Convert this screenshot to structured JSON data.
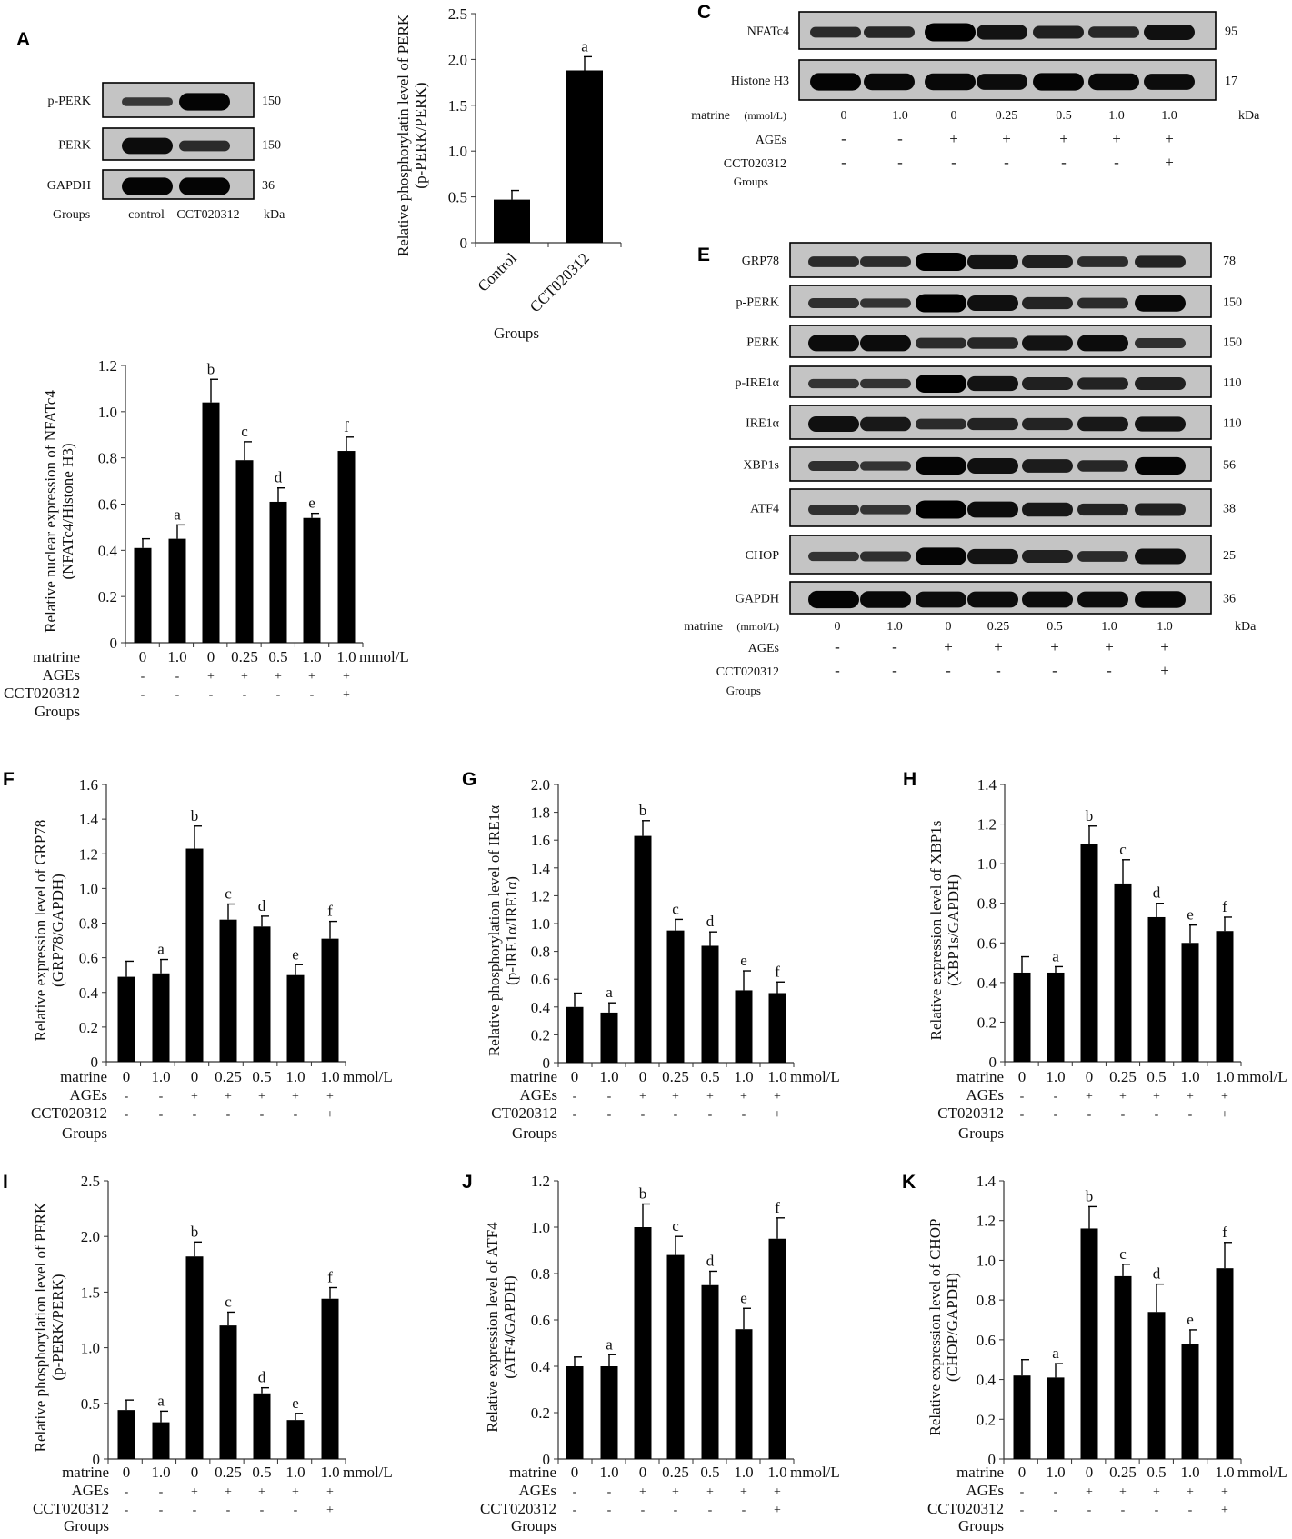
{
  "panels": {
    "A": {
      "letter": "A",
      "rows": [
        {
          "label": "p-PERK",
          "kda": "150",
          "bands": [
            0.3,
            0.95
          ]
        },
        {
          "label": "PERK",
          "kda": "150",
          "bands": [
            0.85,
            0.45
          ]
        },
        {
          "label": "GAPDH",
          "kda": "36",
          "bands": [
            0.95,
            0.95
          ]
        }
      ],
      "groups_label": "Groups",
      "lanes": [
        "control",
        "CCT020312"
      ],
      "kda_label": "kDa"
    },
    "C": {
      "letter": "C",
      "rows": [
        {
          "label": "NFATc4",
          "kda": "95",
          "bands": [
            0.45,
            0.5,
            1.0,
            0.75,
            0.6,
            0.5,
            0.8
          ]
        },
        {
          "label": "Histone H3",
          "kda": "17",
          "bands": [
            0.95,
            0.9,
            0.9,
            0.85,
            0.95,
            0.9,
            0.85
          ]
        }
      ],
      "conditions": {
        "matrine_label": "matrine",
        "matrine_unit": "(mmol/L)",
        "matrine": [
          "0",
          "1.0",
          "0",
          "0.25",
          "0.5",
          "1.0",
          "1.0"
        ],
        "ages_label": "AGEs",
        "ages": [
          "-",
          "-",
          "+",
          "+",
          "+",
          "+",
          "+"
        ],
        "cct_label": "CCT020312",
        "cct": [
          "-",
          "-",
          "-",
          "-",
          "-",
          "-",
          "+"
        ],
        "groups_label": "Groups"
      },
      "kda_label": "kDa"
    },
    "E": {
      "letter": "E",
      "rows": [
        {
          "label": "GRP78",
          "kda": "78",
          "bands": [
            0.45,
            0.45,
            1.0,
            0.75,
            0.6,
            0.45,
            0.55
          ]
        },
        {
          "label": "p-PERK",
          "kda": "150",
          "bands": [
            0.4,
            0.35,
            1.0,
            0.8,
            0.55,
            0.45,
            0.9
          ]
        },
        {
          "label": "PERK",
          "kda": "150",
          "bands": [
            0.85,
            0.85,
            0.45,
            0.5,
            0.75,
            0.85,
            0.4
          ]
        },
        {
          "label": "p-IRE1α",
          "kda": "110",
          "bands": [
            0.35,
            0.35,
            1.0,
            0.75,
            0.6,
            0.55,
            0.6
          ]
        },
        {
          "label": "IRE1α",
          "kda": "110",
          "bands": [
            0.8,
            0.7,
            0.45,
            0.55,
            0.55,
            0.7,
            0.75
          ]
        },
        {
          "label": "XBP1s",
          "kda": "56",
          "bands": [
            0.4,
            0.35,
            0.95,
            0.8,
            0.65,
            0.5,
            0.95
          ]
        },
        {
          "label": "ATF4",
          "kda": "38",
          "bands": [
            0.4,
            0.35,
            1.0,
            0.85,
            0.7,
            0.55,
            0.6
          ]
        },
        {
          "label": "CHOP",
          "kda": "25",
          "bands": [
            0.35,
            0.4,
            0.95,
            0.75,
            0.6,
            0.45,
            0.8
          ]
        },
        {
          "label": "GAPDH",
          "kda": "36",
          "bands": [
            0.95,
            0.9,
            0.85,
            0.85,
            0.85,
            0.85,
            0.9
          ]
        }
      ],
      "conditions": {
        "matrine_label": "matrine",
        "matrine_unit": "(mmol/L)",
        "matrine": [
          "0",
          "1.0",
          "0",
          "0.25",
          "0.5",
          "1.0",
          "1.0"
        ],
        "ages_label": "AGEs",
        "ages": [
          "-",
          "-",
          "+",
          "+",
          "+",
          "+",
          "+"
        ],
        "cct_label": "CCT020312",
        "cct": [
          "-",
          "-",
          "-",
          "-",
          "-",
          "-",
          "+"
        ],
        "groups_label": "Groups"
      },
      "kda_label": "kDa"
    }
  },
  "chart_data": [
    {
      "panel": "B",
      "type": "bar",
      "ylabel": [
        "Relative phosphorylatin level of PERK",
        "(p-PERK/PERK)"
      ],
      "ylim": [
        0,
        2.5
      ],
      "yticks": [
        "0",
        "0.5",
        "1.0",
        "1.5",
        "2.0",
        "2.5"
      ],
      "categories": [
        "Control",
        "CCT020312"
      ],
      "values": [
        0.47,
        1.88
      ],
      "errors": [
        0.1,
        0.15
      ],
      "sig": [
        "",
        "a"
      ],
      "xlabel": "Groups"
    },
    {
      "panel": "D",
      "type": "bar",
      "ylabel": [
        "Relative nuclear expression of NFATc4",
        "(NFATc4/Histone H3)"
      ],
      "ylim": [
        0,
        1.2
      ],
      "yticks": [
        "0",
        "0.2",
        "0.4",
        "0.6",
        "0.8",
        "1.0",
        "1.2"
      ],
      "values": [
        0.41,
        0.45,
        1.04,
        0.79,
        0.61,
        0.54,
        0.83
      ],
      "errors": [
        0.04,
        0.06,
        0.1,
        0.08,
        0.06,
        0.02,
        0.06
      ],
      "sig": [
        "",
        "a",
        "b",
        "c",
        "d",
        "e",
        "f"
      ],
      "rows": {
        "matrine_label": "matrine",
        "matrine": [
          "0",
          "1.0",
          "0",
          "0.25",
          "0.5",
          "1.0",
          "1.0"
        ],
        "unit": "mmol/L",
        "ages_label": "AGEs",
        "ages": [
          "-",
          "-",
          "+",
          "+",
          "+",
          "+",
          "+"
        ],
        "cct_label": "CCT020312",
        "cct": [
          "-",
          "-",
          "-",
          "-",
          "-",
          "-",
          "+"
        ],
        "groups_label": "Groups"
      }
    },
    {
      "panel": "F",
      "type": "bar",
      "ylabel": [
        "Relative expression level of GRP78",
        "(GRP78/GAPDH)"
      ],
      "ylim": [
        0,
        1.6
      ],
      "yticks": [
        "0",
        "0.2",
        "0.4",
        "0.6",
        "0.8",
        "1.0",
        "1.2",
        "1.4",
        "1.6"
      ],
      "values": [
        0.49,
        0.51,
        1.23,
        0.82,
        0.78,
        0.5,
        0.71
      ],
      "errors": [
        0.09,
        0.08,
        0.13,
        0.09,
        0.06,
        0.06,
        0.1
      ],
      "sig": [
        "",
        "a",
        "b",
        "c",
        "d",
        "e",
        "f"
      ],
      "rows": {
        "matrine_label": "matrine",
        "matrine": [
          "0",
          "1.0",
          "0",
          "0.25",
          "0.5",
          "1.0",
          "1.0"
        ],
        "unit": "mmol/L",
        "ages_label": "AGEs",
        "ages": [
          "-",
          "-",
          "+",
          "+",
          "+",
          "+",
          "+"
        ],
        "cct_label": "CCT020312",
        "cct": [
          "-",
          "-",
          "-",
          "-",
          "-",
          "-",
          "+"
        ],
        "groups_label": "Groups"
      }
    },
    {
      "panel": "G",
      "type": "bar",
      "ylabel": [
        "Relative phosphorylation level of IRE1α",
        "(p-IRE1α/IRE1α)"
      ],
      "ylim": [
        0,
        2.0
      ],
      "yticks": [
        "0",
        "0.2",
        "0.4",
        "0.6",
        "0.8",
        "1.0",
        "1.2",
        "1.4",
        "1.6",
        "1.8",
        "2.0"
      ],
      "values": [
        0.4,
        0.36,
        1.63,
        0.95,
        0.84,
        0.52,
        0.5
      ],
      "errors": [
        0.1,
        0.07,
        0.11,
        0.08,
        0.1,
        0.14,
        0.08
      ],
      "sig": [
        "",
        "a",
        "b",
        "c",
        "d",
        "e",
        "f"
      ],
      "rows": {
        "matrine_label": "matrine",
        "matrine": [
          "0",
          "1.0",
          "0",
          "0.25",
          "0.5",
          "1.0",
          "1.0"
        ],
        "unit": "mmol/L",
        "ages_label": "AGEs",
        "ages": [
          "-",
          "-",
          "+",
          "+",
          "+",
          "+",
          "+"
        ],
        "cct_label": "CT020312",
        "cct": [
          "-",
          "-",
          "-",
          "-",
          "-",
          "-",
          "+"
        ],
        "groups_label": "Groups"
      }
    },
    {
      "panel": "H",
      "type": "bar",
      "ylabel": [
        "Relative expression level of XBP1s",
        "(XBP1s/GAPDH)"
      ],
      "ylim": [
        0,
        1.4
      ],
      "yticks": [
        "0",
        "0.2",
        "0.4",
        "0.6",
        "0.8",
        "1.0",
        "1.2",
        "1.4"
      ],
      "values": [
        0.45,
        0.45,
        1.1,
        0.9,
        0.73,
        0.6,
        0.66
      ],
      "errors": [
        0.08,
        0.03,
        0.09,
        0.12,
        0.07,
        0.09,
        0.07
      ],
      "sig": [
        "",
        "a",
        "b",
        "c",
        "d",
        "e",
        "f"
      ],
      "rows": {
        "matrine_label": "matrine",
        "matrine": [
          "0",
          "1.0",
          "0",
          "0.25",
          "0.5",
          "1.0",
          "1.0"
        ],
        "unit": "mmol/L",
        "ages_label": "AGEs",
        "ages": [
          "-",
          "-",
          "+",
          "+",
          "+",
          "+",
          "+"
        ],
        "cct_label": "CT020312",
        "cct": [
          "-",
          "-",
          "-",
          "-",
          "-",
          "-",
          "+"
        ],
        "groups_label": "Groups"
      }
    },
    {
      "panel": "I",
      "type": "bar",
      "ylabel": [
        "Relative phosphorylation level of PERK",
        "(p-PERK/PERK)"
      ],
      "ylim": [
        0,
        2.5
      ],
      "yticks": [
        "0",
        "0.5",
        "1.0",
        "1.5",
        "2.0",
        "2.5"
      ],
      "values": [
        0.44,
        0.33,
        1.82,
        1.2,
        0.59,
        0.35,
        1.44
      ],
      "errors": [
        0.09,
        0.1,
        0.13,
        0.12,
        0.05,
        0.06,
        0.1
      ],
      "sig": [
        "",
        "a",
        "b",
        "c",
        "d",
        "e",
        "f"
      ],
      "rows": {
        "matrine_label": "matrine",
        "matrine": [
          "0",
          "1.0",
          "0",
          "0.25",
          "0.5",
          "1.0",
          "1.0"
        ],
        "unit": "mmol/L",
        "ages_label": "AGEs",
        "ages": [
          "-",
          "-",
          "+",
          "+",
          "+",
          "+",
          "+"
        ],
        "cct_label": "CCT020312",
        "cct": [
          "-",
          "-",
          "-",
          "-",
          "-",
          "-",
          "+"
        ],
        "groups_label": "Groups"
      }
    },
    {
      "panel": "J",
      "type": "bar",
      "ylabel": [
        "Relative expression level of ATF4",
        "(ATF4/GAPDH)"
      ],
      "ylim": [
        0,
        1.2
      ],
      "yticks": [
        "0",
        "0.2",
        "0.4",
        "0.6",
        "0.8",
        "1.0",
        "1.2"
      ],
      "values": [
        0.4,
        0.4,
        1.0,
        0.88,
        0.75,
        0.56,
        0.95
      ],
      "errors": [
        0.04,
        0.05,
        0.1,
        0.08,
        0.06,
        0.09,
        0.09
      ],
      "sig": [
        "",
        "a",
        "b",
        "c",
        "d",
        "e",
        "f"
      ],
      "rows": {
        "matrine_label": "matrine",
        "matrine": [
          "0",
          "1.0",
          "0",
          "0.25",
          "0.5",
          "1.0",
          "1.0"
        ],
        "unit": "mmol/L",
        "ages_label": "AGEs",
        "ages": [
          "-",
          "-",
          "+",
          "+",
          "+",
          "+",
          "+"
        ],
        "cct_label": "CCT020312",
        "cct": [
          "-",
          "-",
          "-",
          "-",
          "-",
          "-",
          "+"
        ],
        "groups_label": "Groups"
      }
    },
    {
      "panel": "K",
      "type": "bar",
      "ylabel": [
        "Relative expression level of CHOP",
        "(CHOP/GAPDH)"
      ],
      "ylim": [
        0,
        1.4
      ],
      "yticks": [
        "0",
        "0.2",
        "0.4",
        "0.6",
        "0.8",
        "1.0",
        "1.2",
        "1.4"
      ],
      "values": [
        0.42,
        0.41,
        1.16,
        0.92,
        0.74,
        0.58,
        0.96
      ],
      "errors": [
        0.08,
        0.07,
        0.11,
        0.06,
        0.14,
        0.07,
        0.13
      ],
      "sig": [
        "",
        "a",
        "b",
        "c",
        "d",
        "e",
        "f"
      ],
      "rows": {
        "matrine_label": "matrine",
        "matrine": [
          "0",
          "1.0",
          "0",
          "0.25",
          "0.5",
          "1.0",
          "1.0"
        ],
        "unit": "mmol/L",
        "ages_label": "AGEs",
        "ages": [
          "-",
          "-",
          "+",
          "+",
          "+",
          "+",
          "+"
        ],
        "cct_label": "CCT020312",
        "cct": [
          "-",
          "-",
          "-",
          "-",
          "-",
          "-",
          "+"
        ],
        "groups_label": "Groups"
      }
    }
  ]
}
